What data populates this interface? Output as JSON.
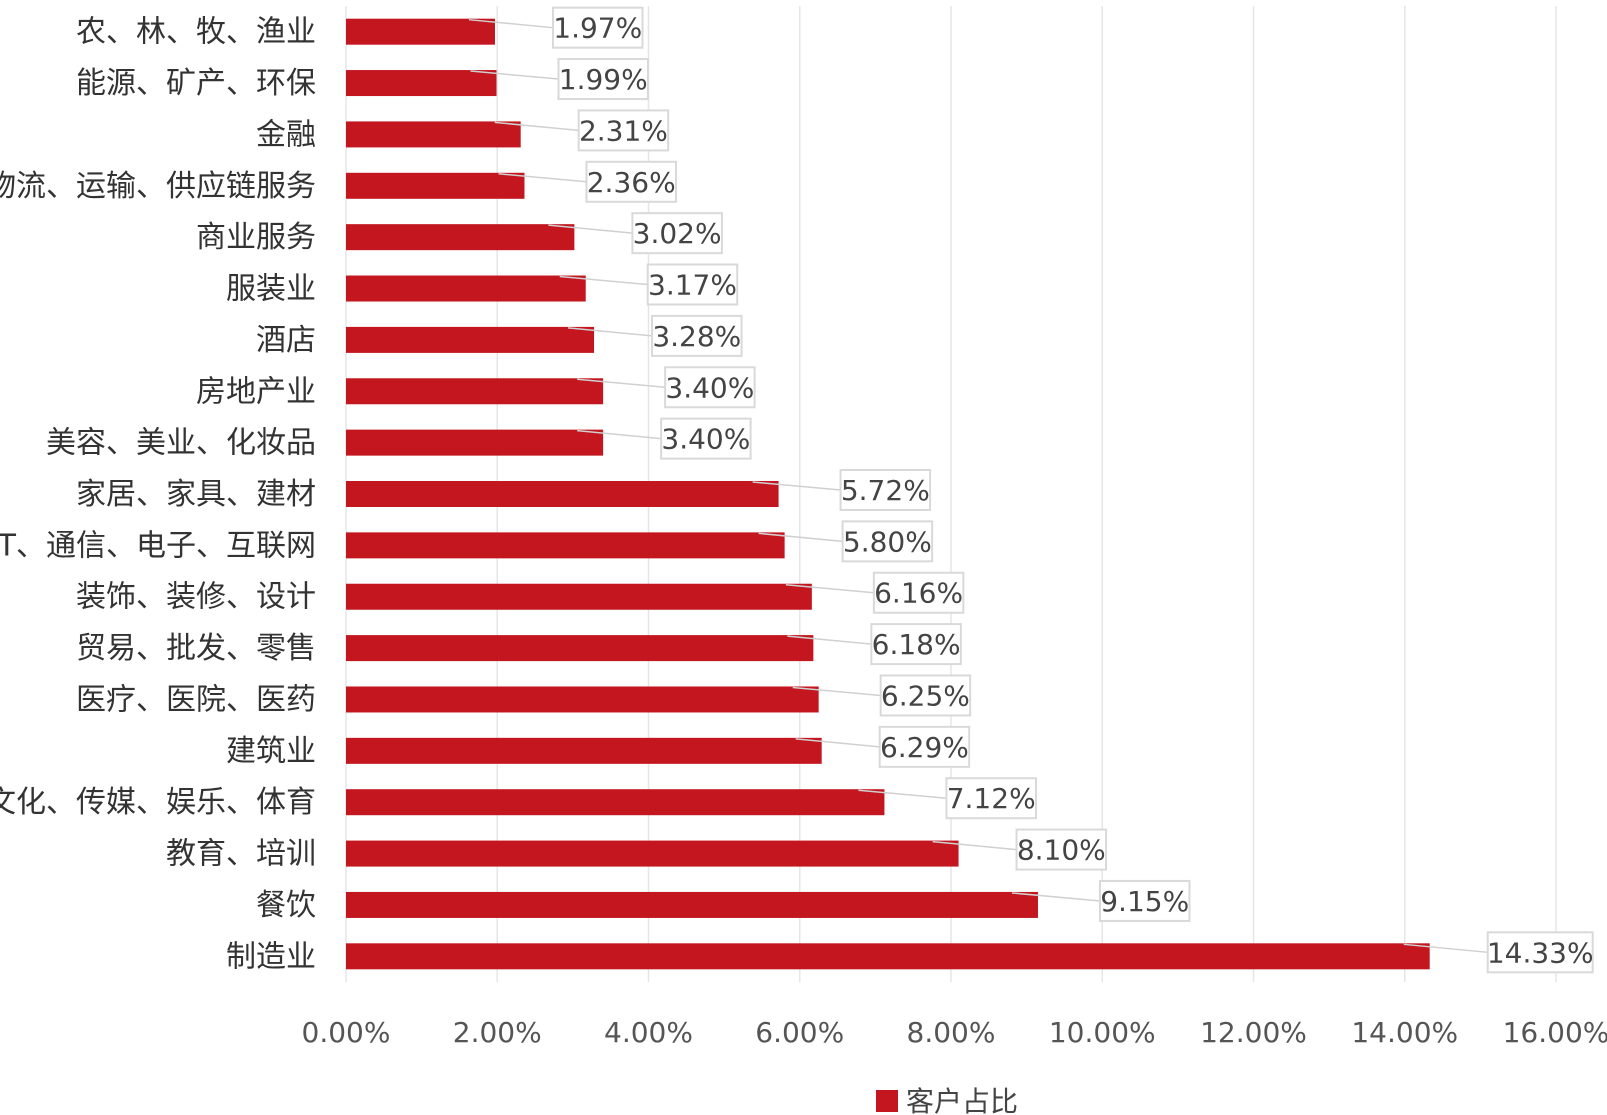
{
  "chart_data": {
    "type": "bar",
    "orientation": "horizontal",
    "categories": [
      "农、林、牧、渔业",
      "能源、矿产、环保",
      "金融",
      "物流、运输、供应链服务",
      "商业服务",
      "服装业",
      "酒店",
      "房地产业",
      "美容、美业、化妆品",
      "家居、家具、建材",
      "IT、通信、电子、互联网",
      "装饰、装修、设计",
      "贸易、批发、零售",
      "医疗、医院、医药",
      "建筑业",
      "文化、传媒、娱乐、体育",
      "教育、培训",
      "餐饮",
      "制造业"
    ],
    "series": [
      {
        "name": "客户占比",
        "values": [
          1.97,
          1.99,
          2.31,
          2.36,
          3.02,
          3.17,
          3.28,
          3.4,
          3.4,
          5.72,
          5.8,
          6.16,
          6.18,
          6.25,
          6.29,
          7.12,
          8.1,
          9.15,
          14.33
        ],
        "labels": [
          "1.97%",
          "1.99%",
          "2.31%",
          "2.36%",
          "3.02%",
          "3.17%",
          "3.28%",
          "3.40%",
          "3.40%",
          "5.72%",
          "5.80%",
          "6.16%",
          "6.18%",
          "6.25%",
          "6.29%",
          "7.12%",
          "8.10%",
          "9.15%",
          "14.33%"
        ],
        "color": "#c3161f"
      }
    ],
    "xlim": [
      0,
      16
    ],
    "x_ticks": [
      "0.00%",
      "2.00%",
      "4.00%",
      "6.00%",
      "8.00%",
      "10.00%",
      "12.00%",
      "14.00%",
      "16.00%"
    ],
    "grid": true,
    "legend_position": "bottom"
  }
}
